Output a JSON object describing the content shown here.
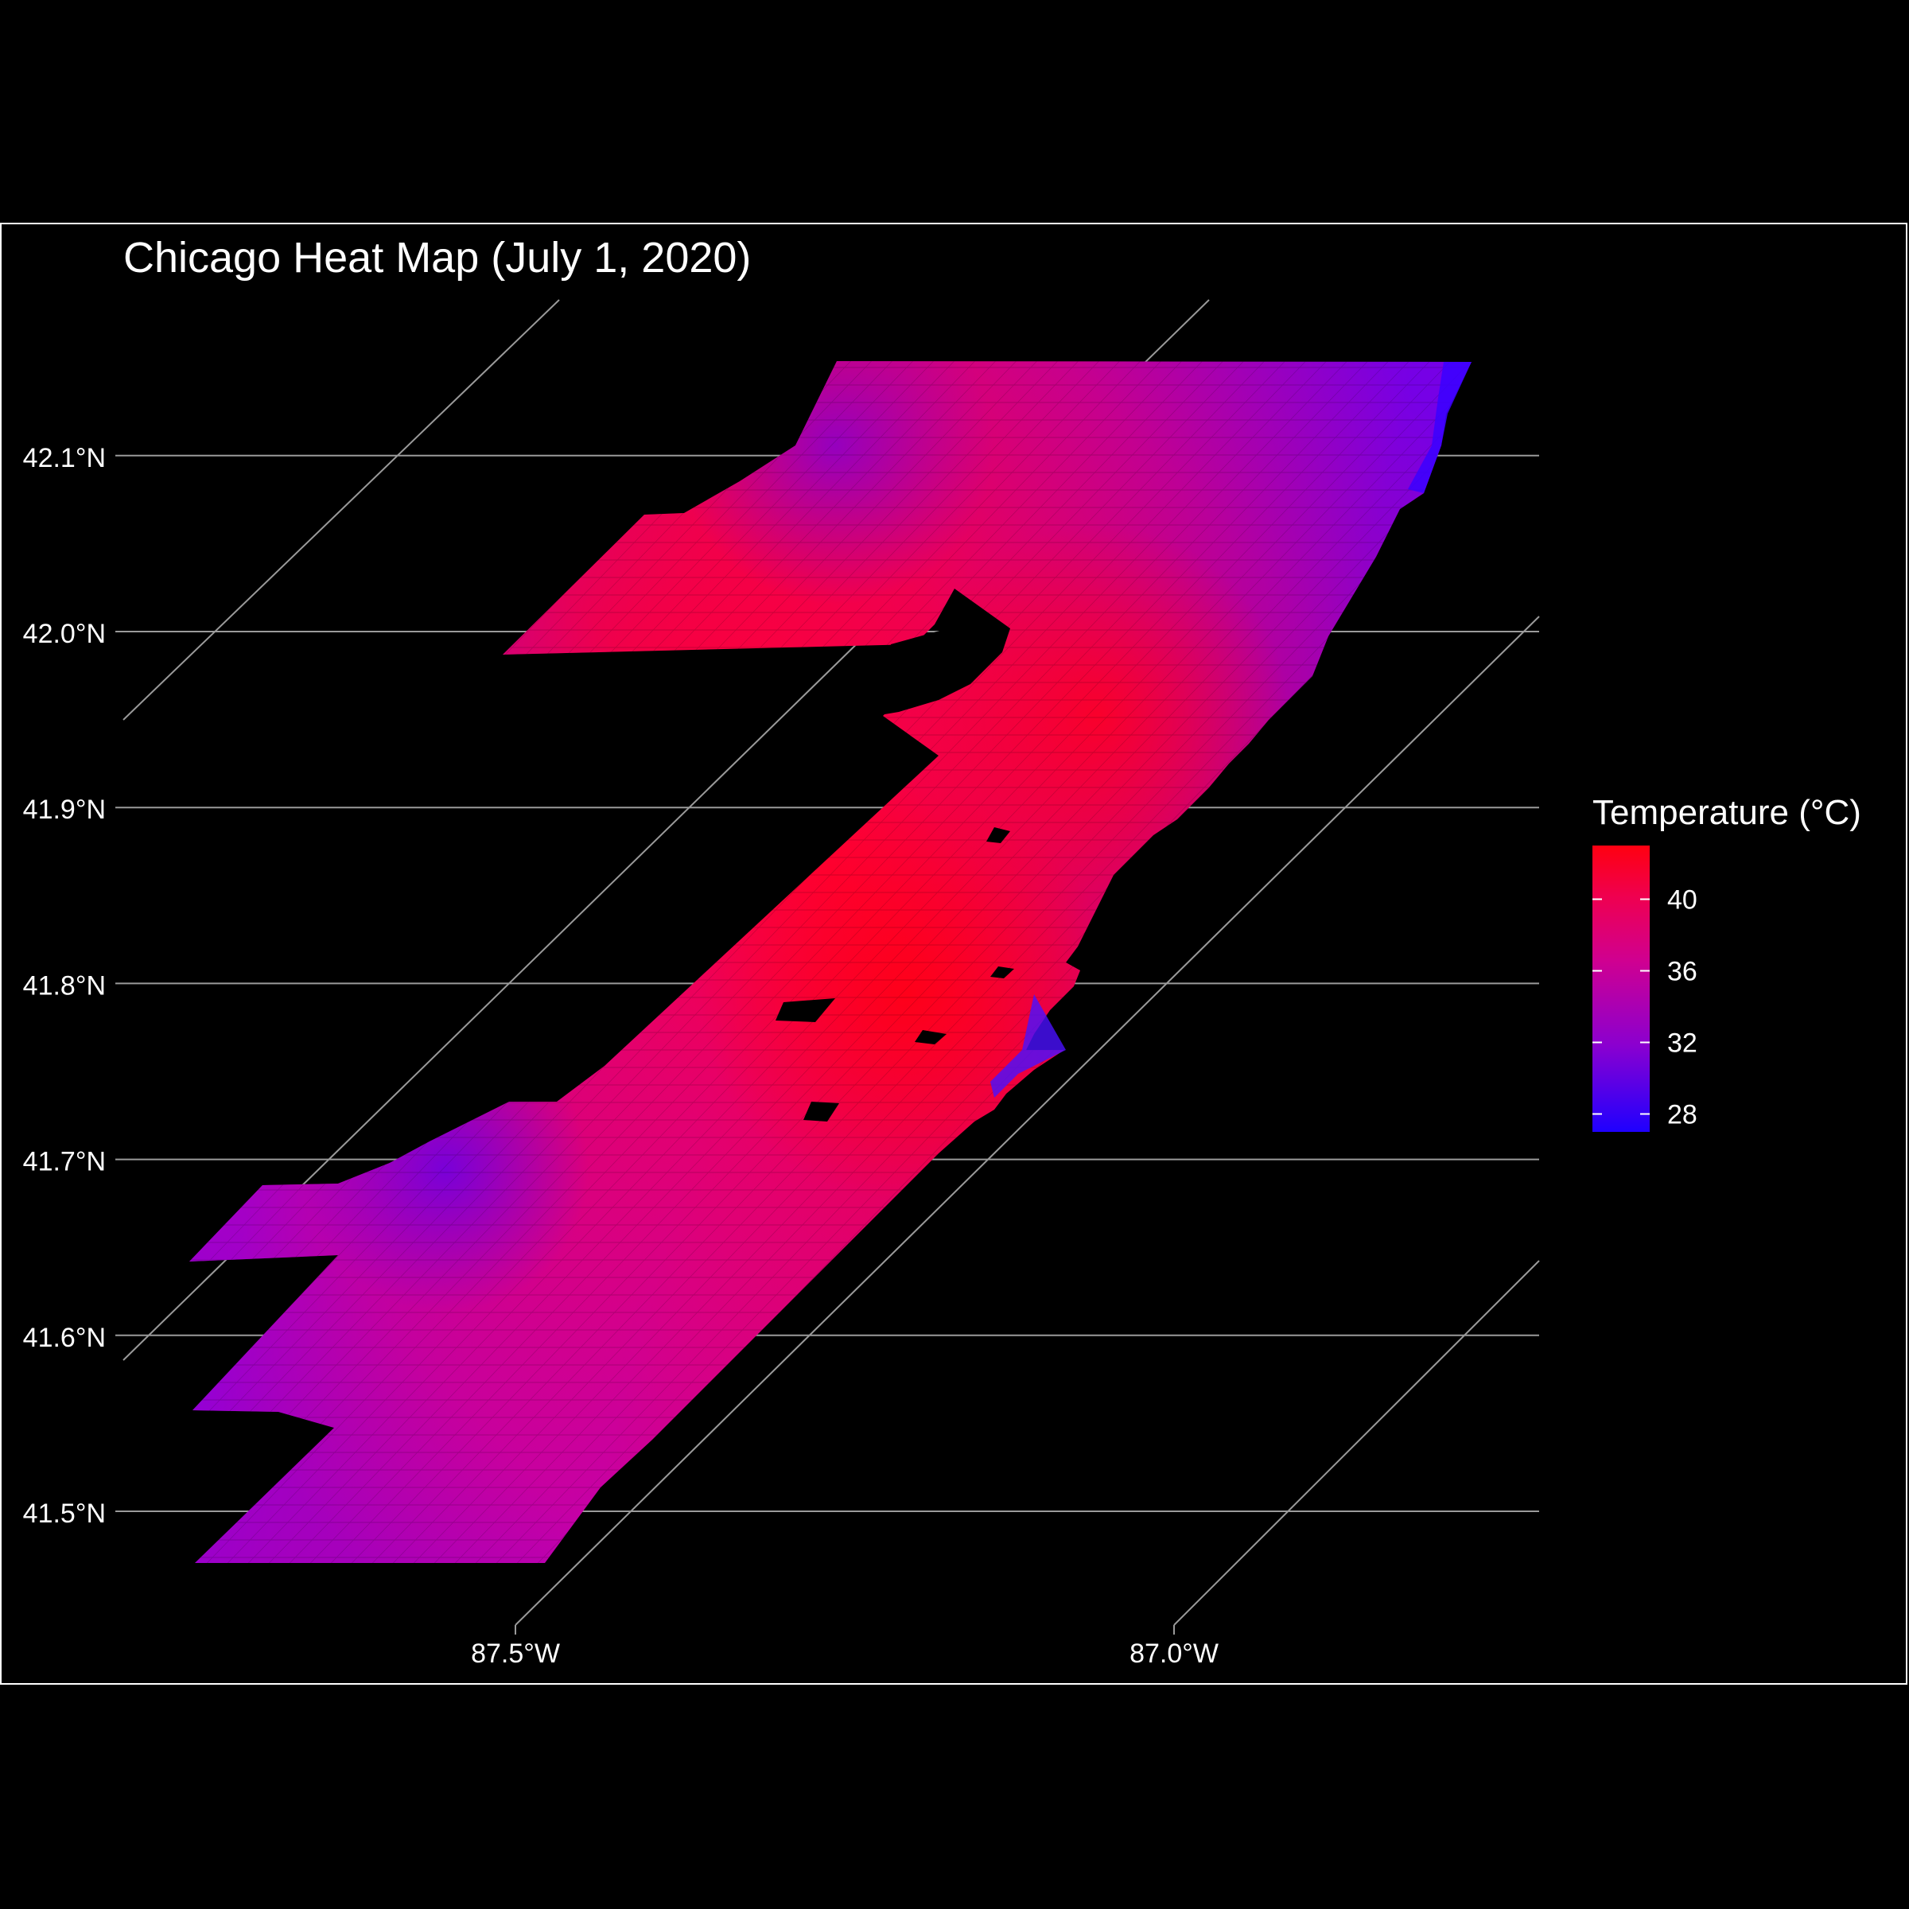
{
  "chart_data": {
    "type": "heatmap",
    "title": "Chicago Heat Map (July 1, 2020)",
    "y_axis": {
      "ticks": [
        "41.5°N",
        "41.6°N",
        "41.7°N",
        "41.8°N",
        "41.9°N",
        "42.0°N",
        "42.1°N"
      ],
      "tick_values": [
        41.5,
        41.6,
        41.7,
        41.8,
        41.9,
        42.0,
        42.1
      ]
    },
    "x_axis": {
      "ticks": [
        "87.5°W",
        "87.0°W"
      ],
      "tick_values": [
        -87.5,
        -87.0
      ]
    },
    "legend": {
      "title": "Temperature (°C)",
      "ticks": [
        "40",
        "36",
        "32",
        "28"
      ],
      "tick_values": [
        40,
        36,
        32,
        28
      ],
      "range": [
        27,
        43
      ],
      "low_color": "#1f00ff",
      "mid_color": "#b000c0",
      "high_color": "#ff0020",
      "placement": "right"
    },
    "background": "#000000",
    "grid": true
  }
}
